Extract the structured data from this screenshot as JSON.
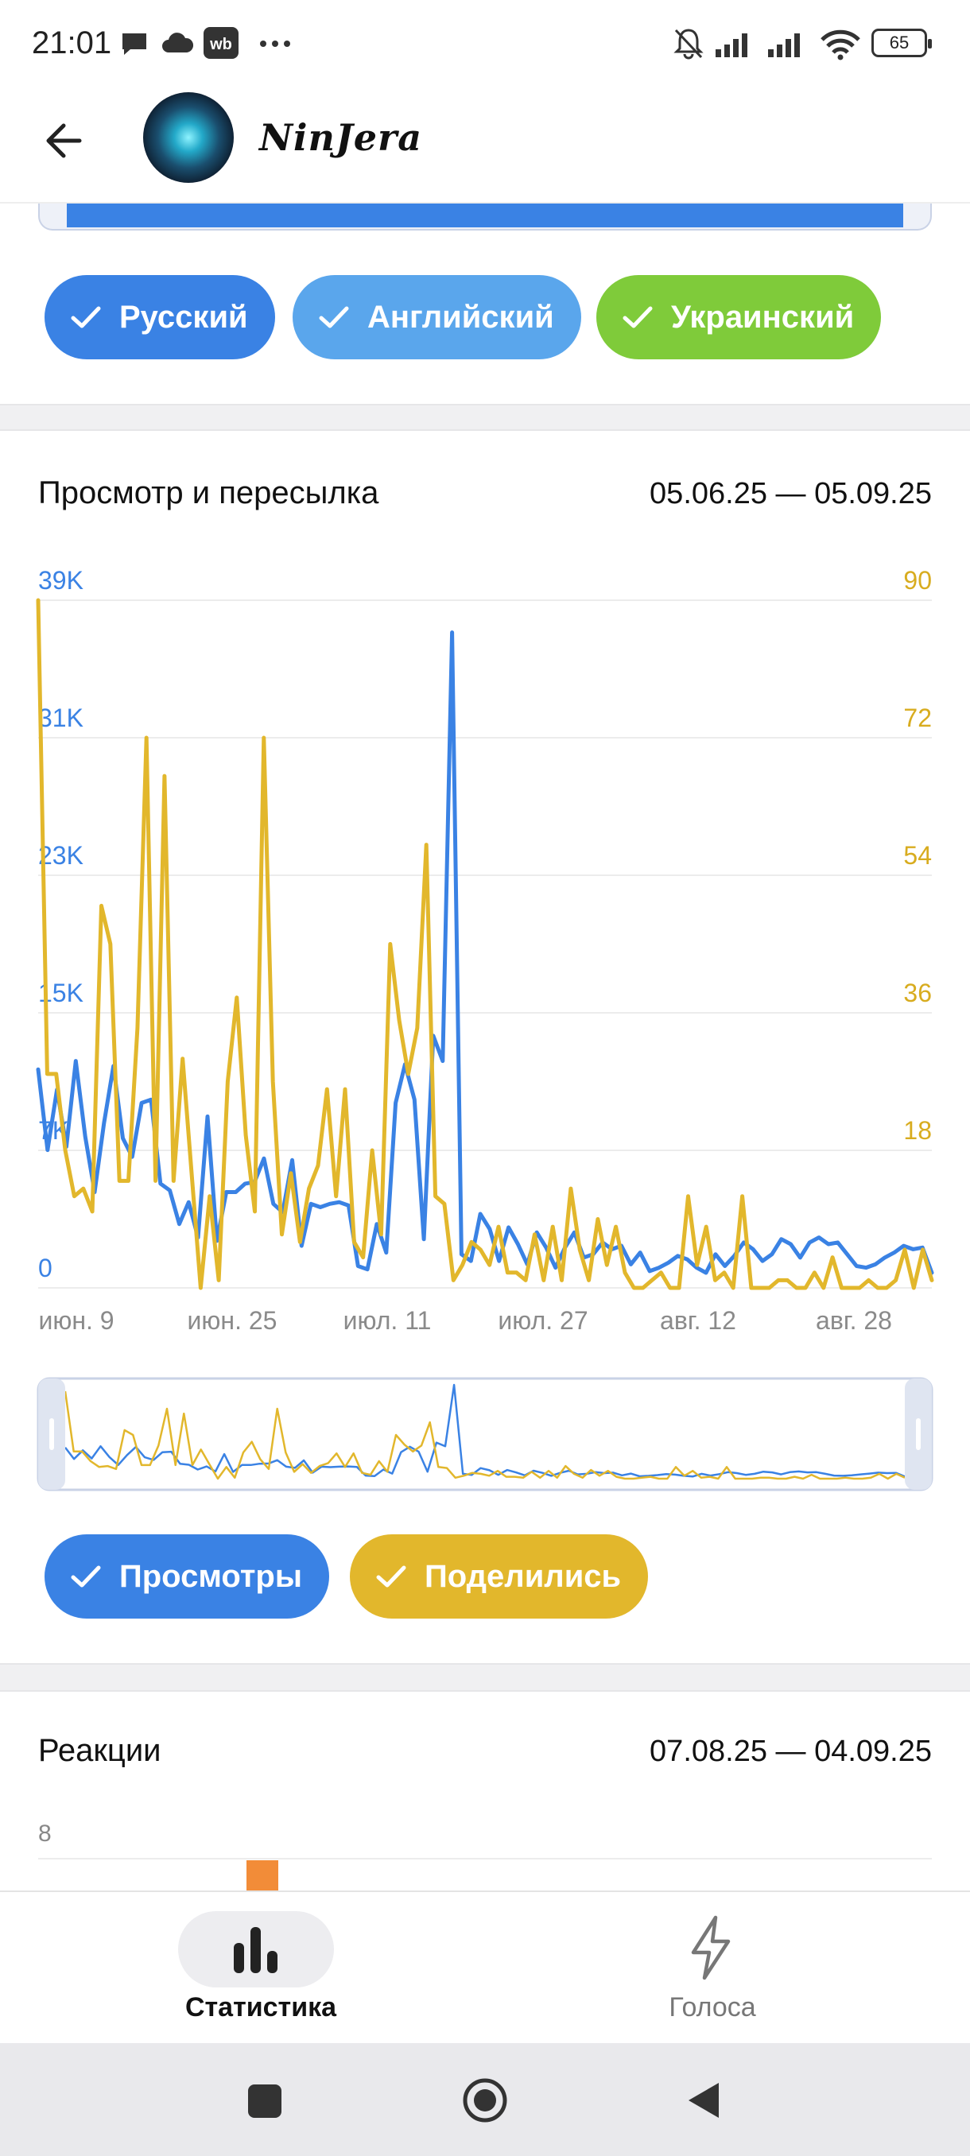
{
  "status_bar": {
    "time": "21:01",
    "battery": "65",
    "icons": [
      "chat-bubble-icon",
      "cloud-icon",
      "wb-app-icon",
      "more-dots-icon",
      "bell-muted-icon",
      "signal-icon",
      "signal-icon",
      "wifi-icon"
    ]
  },
  "header": {
    "channel_name": "NinJera",
    "back_icon": "arrow-left-icon"
  },
  "language_filters": [
    {
      "label": "Русский",
      "color": "#3a82e4"
    },
    {
      "label": "Английский",
      "color": "#5aa6ec"
    },
    {
      "label": "Украинский",
      "color": "#7fcb3a"
    }
  ],
  "views_card": {
    "title": "Просмотр и пересылка",
    "date_range": "05.06.25 — 05.09.25",
    "toggles": [
      {
        "label": "Просмотры",
        "color": "#3a82e4"
      },
      {
        "label": "Поделились",
        "color": "#e2b72c"
      }
    ]
  },
  "chart_data": {
    "type": "line",
    "left_axis_ticks": [
      "39K",
      "31K",
      "23K",
      "15K",
      "7K",
      "0"
    ],
    "right_axis_ticks": [
      "90",
      "72",
      "54",
      "36",
      "18"
    ],
    "x_tick_labels": [
      "июн. 9",
      "июн. 25",
      "июл. 11",
      "июл. 27",
      "авг. 12",
      "авг. 28"
    ],
    "ylim_left": [
      0,
      39000
    ],
    "ylim_right": [
      0,
      90
    ],
    "series": [
      {
        "color": "#3a82e4",
        "axis": "left",
        "values": [
          13000,
          8200,
          11800,
          8400,
          13500,
          9000,
          5700,
          9800,
          13200,
          8900,
          7800,
          11000,
          11200,
          6200,
          5800,
          3800,
          5100,
          3000,
          10200,
          2800,
          5700,
          5700,
          6200,
          6300,
          7700,
          5000,
          4500,
          7600,
          2500,
          5000,
          4800,
          5000,
          5100,
          4900,
          1300,
          1100,
          3800,
          2100,
          11000,
          13300,
          11200,
          2900,
          15000,
          13500,
          39000,
          2000,
          1600,
          4400,
          3500,
          1600,
          3600,
          2600,
          1400,
          3300,
          2400,
          1200,
          2400,
          3300,
          1800,
          2000,
          2700,
          2300,
          2500,
          1400,
          2100,
          1000,
          1200,
          1500,
          1900,
          1700,
          1200,
          900,
          2000,
          1300,
          1900,
          2700,
          2300,
          1600,
          2000,
          2900,
          2600,
          1800,
          2700,
          3000,
          2600,
          2700,
          2000,
          1300,
          1200,
          1400,
          1800,
          2100,
          2500,
          2300,
          2400,
          900
        ]
      },
      {
        "color": "#e2b72c",
        "axis": "right",
        "values": [
          90,
          28,
          28,
          18,
          12,
          13,
          10,
          50,
          45,
          14,
          14,
          34,
          72,
          14,
          67,
          14,
          30,
          15,
          0,
          12,
          1,
          27,
          38,
          20,
          10,
          72,
          27,
          7,
          15,
          6,
          13,
          16,
          26,
          12,
          26,
          6,
          4,
          18,
          7,
          45,
          35,
          28,
          34,
          58,
          12,
          11,
          1,
          3,
          6,
          5,
          3,
          8,
          2,
          2,
          1,
          7,
          1,
          8,
          1,
          13,
          5,
          1,
          9,
          3,
          8,
          2,
          0,
          0,
          1,
          2,
          0,
          0,
          12,
          3,
          8,
          1,
          2,
          0,
          12,
          0,
          0,
          0,
          1,
          1,
          0,
          0,
          2,
          0,
          4,
          0,
          0,
          0,
          1,
          0,
          0,
          1,
          5,
          0,
          5,
          1
        ]
      }
    ]
  },
  "reactions_card": {
    "title": "Реакции",
    "date_range": "07.08.25 — 04.09.25",
    "chart_data": {
      "type": "bar",
      "y_tick_labels": [
        "8"
      ],
      "bar_color": "#f28c38"
    }
  },
  "bottom_nav": {
    "items": [
      {
        "label": "Статистика",
        "icon": "bar-chart-icon",
        "active": true
      },
      {
        "label": "Голоса",
        "icon": "lightning-icon",
        "active": false
      }
    ]
  }
}
